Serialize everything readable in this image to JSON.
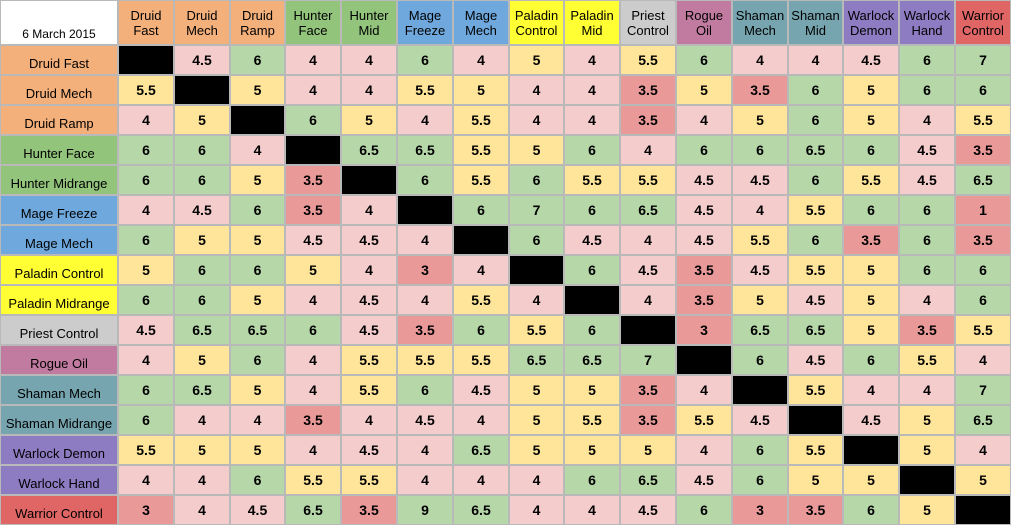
{
  "chart_data": {
    "type": "heatmap",
    "title": "6 March 2015",
    "columns": [
      {
        "line1": "Druid",
        "line2": "Fast",
        "color": "#f4b07b"
      },
      {
        "line1": "Druid",
        "line2": "Mech",
        "color": "#f4b07b"
      },
      {
        "line1": "Druid",
        "line2": "Ramp",
        "color": "#f4b07b"
      },
      {
        "line1": "Hunter",
        "line2": "Face",
        "color": "#92c47c"
      },
      {
        "line1": "Hunter",
        "line2": "Mid",
        "color": "#92c47c"
      },
      {
        "line1": "Mage",
        "line2": "Freeze",
        "color": "#6fa8dc"
      },
      {
        "line1": "Mage",
        "line2": "Mech",
        "color": "#6fa8dc"
      },
      {
        "line1": "Paladin",
        "line2": "Control",
        "color": "#ffff33"
      },
      {
        "line1": "Paladin",
        "line2": "Mid",
        "color": "#ffff33"
      },
      {
        "line1": "Priest",
        "line2": "Control",
        "color": "#cccccc"
      },
      {
        "line1": "Rogue",
        "line2": "Oil",
        "color": "#c27ba0"
      },
      {
        "line1": "Shaman",
        "line2": "Mech",
        "color": "#76a5af"
      },
      {
        "line1": "Shaman",
        "line2": "Mid",
        "color": "#76a5af"
      },
      {
        "line1": "Warlock",
        "line2": "Demon",
        "color": "#8e7cc3"
      },
      {
        "line1": "Warlock",
        "line2": "Hand",
        "color": "#8e7cc3"
      },
      {
        "line1": "Warrior",
        "line2": "Control",
        "color": "#e06666"
      }
    ],
    "rows": [
      {
        "label": "Druid Fast",
        "color": "#f4b07b"
      },
      {
        "label": "Druid Mech",
        "color": "#f4b07b"
      },
      {
        "label": "Druid Ramp",
        "color": "#f4b07b"
      },
      {
        "label": "Hunter Face",
        "color": "#92c47c"
      },
      {
        "label": "Hunter Midrange",
        "color": "#92c47c"
      },
      {
        "label": "Mage Freeze",
        "color": "#6fa8dc"
      },
      {
        "label": "Mage Mech",
        "color": "#6fa8dc"
      },
      {
        "label": "Paladin Control",
        "color": "#ffff33"
      },
      {
        "label": "Paladin Midrange",
        "color": "#ffff33"
      },
      {
        "label": "Priest Control",
        "color": "#cccccc"
      },
      {
        "label": "Rogue Oil",
        "color": "#c27ba0"
      },
      {
        "label": "Shaman Mech",
        "color": "#76a5af"
      },
      {
        "label": "Shaman Midrange",
        "color": "#76a5af"
      },
      {
        "label": "Warlock Demon",
        "color": "#8e7cc3"
      },
      {
        "label": "Warlock Hand",
        "color": "#8e7cc3"
      },
      {
        "label": "Warrior Control",
        "color": "#e06666"
      }
    ],
    "values": [
      [
        null,
        "4.5",
        "6",
        "4",
        "4",
        "6",
        "4",
        "5",
        "4",
        "5.5",
        "6",
        "4",
        "4",
        "4.5",
        "6",
        "7"
      ],
      [
        "5.5",
        null,
        "5",
        "4",
        "4",
        "5.5",
        "5",
        "4",
        "4",
        "3.5",
        "5",
        "3.5",
        "6",
        "5",
        "6",
        "6"
      ],
      [
        "4",
        "5",
        null,
        "6",
        "5",
        "4",
        "5.5",
        "4",
        "4",
        "3.5",
        "4",
        "5",
        "6",
        "5",
        "4",
        "5.5"
      ],
      [
        "6",
        "6",
        "4",
        null,
        "6.5",
        "6.5",
        "5.5",
        "5",
        "6",
        "4",
        "6",
        "6",
        "6.5",
        "6",
        "4.5",
        "3.5"
      ],
      [
        "6",
        "6",
        "5",
        "3.5",
        null,
        "6",
        "5.5",
        "6",
        "5.5",
        "5.5",
        "4.5",
        "4.5",
        "6",
        "5.5",
        "4.5",
        "6.5"
      ],
      [
        "4",
        "4.5",
        "6",
        "3.5",
        "4",
        null,
        "6",
        "7",
        "6",
        "6.5",
        "4.5",
        "4",
        "5.5",
        "6",
        "6",
        "1"
      ],
      [
        "6",
        "5",
        "5",
        "4.5",
        "4.5",
        "4",
        null,
        "6",
        "4.5",
        "4",
        "4.5",
        "5.5",
        "6",
        "3.5",
        "6",
        "3.5"
      ],
      [
        "5",
        "6",
        "6",
        "5",
        "4",
        "3",
        "4",
        null,
        "6",
        "4.5",
        "3.5",
        "4.5",
        "5.5",
        "5",
        "6",
        "6"
      ],
      [
        "6",
        "6",
        "5",
        "4",
        "4.5",
        "4",
        "5.5",
        "4",
        null,
        "4",
        "3.5",
        "5",
        "4.5",
        "5",
        "4",
        "6"
      ],
      [
        "4.5",
        "6.5",
        "6.5",
        "6",
        "4.5",
        "3.5",
        "6",
        "5.5",
        "6",
        null,
        "3",
        "6.5",
        "6.5",
        "5",
        "3.5",
        "5.5"
      ],
      [
        "4",
        "5",
        "6",
        "4",
        "5.5",
        "5.5",
        "5.5",
        "6.5",
        "6.5",
        "7",
        null,
        "6",
        "4.5",
        "6",
        "5.5",
        "4"
      ],
      [
        "6",
        "6.5",
        "5",
        "4",
        "5.5",
        "6",
        "4.5",
        "5",
        "5",
        "3.5",
        "4",
        null,
        "5.5",
        "4",
        "4",
        "7"
      ],
      [
        "6",
        "4",
        "4",
        "3.5",
        "4",
        "4.5",
        "4",
        "5",
        "5.5",
        "3.5",
        "5.5",
        "4.5",
        null,
        "4.5",
        "5",
        "6.5"
      ],
      [
        "5.5",
        "5",
        "5",
        "4",
        "4.5",
        "4",
        "6.5",
        "5",
        "5",
        "5",
        "4",
        "6",
        "5.5",
        null,
        "5",
        "4"
      ],
      [
        "4",
        "4",
        "6",
        "5.5",
        "5.5",
        "4",
        "4",
        "4",
        "6",
        "6.5",
        "4.5",
        "6",
        "5",
        "5",
        null,
        "5"
      ],
      [
        "3",
        "4",
        "4.5",
        "6.5",
        "3.5",
        "9",
        "6.5",
        "4",
        "4",
        "4.5",
        "6",
        "3",
        "3.5",
        "6",
        "5",
        null
      ]
    ],
    "scale": [
      {
        "max": 3.5,
        "color": "#ea9999"
      },
      {
        "max": 4.5,
        "color": "#f4cccc"
      },
      {
        "max": 5.5,
        "color": "#ffe599"
      },
      {
        "max": 99,
        "color": "#b6d7a8"
      }
    ],
    "diagonal_color": "#000000"
  }
}
